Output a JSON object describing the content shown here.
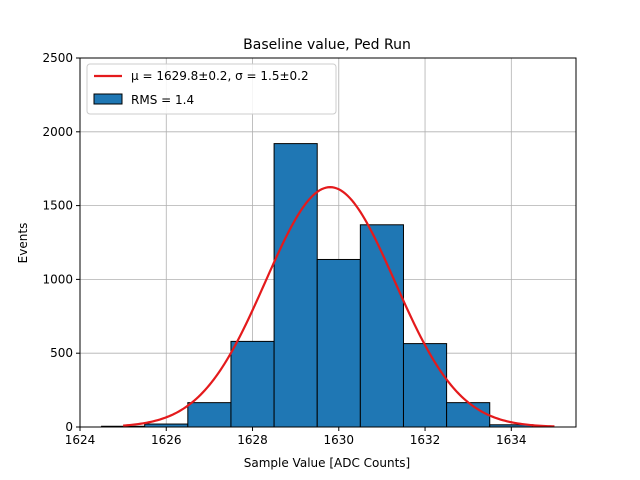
{
  "chart_data": {
    "type": "bar",
    "title": "Baseline value, Ped Run",
    "xlabel": "Sample Value [ADC Counts]",
    "ylabel": "Events",
    "xlim": [
      1624,
      1635.5
    ],
    "ylim": [
      0,
      2500
    ],
    "xticks": [
      1624,
      1626,
      1628,
      1630,
      1632,
      1634
    ],
    "yticks": [
      0,
      500,
      1000,
      1500,
      2000,
      2500
    ],
    "grid": true,
    "legend_position": "top-left",
    "histogram": {
      "name": "RMS = 1.4",
      "color": "#1f77b4",
      "edgecolor": "#000000",
      "bins": [
        {
          "x0": 1624.5,
          "x1": 1625.5,
          "value": 5
        },
        {
          "x0": 1625.5,
          "x1": 1626.5,
          "value": 20
        },
        {
          "x0": 1626.5,
          "x1": 1627.5,
          "value": 165
        },
        {
          "x0": 1627.5,
          "x1": 1628.5,
          "value": 580
        },
        {
          "x0": 1628.5,
          "x1": 1629.5,
          "value": 1920
        },
        {
          "x0": 1629.5,
          "x1": 1630.5,
          "value": 1135
        },
        {
          "x0": 1630.5,
          "x1": 1631.5,
          "value": 1370
        },
        {
          "x0": 1631.5,
          "x1": 1632.5,
          "value": 565
        },
        {
          "x0": 1632.5,
          "x1": 1633.5,
          "value": 165
        },
        {
          "x0": 1633.5,
          "x1": 1634.5,
          "value": 15
        }
      ]
    },
    "fit": {
      "name": "μ = 1629.8±0.2, σ = 1.5±0.2",
      "color": "#e41a1c",
      "mu": 1629.8,
      "sigma": 1.5,
      "amplitude": 1625,
      "x_range": [
        1625,
        1635
      ]
    }
  }
}
